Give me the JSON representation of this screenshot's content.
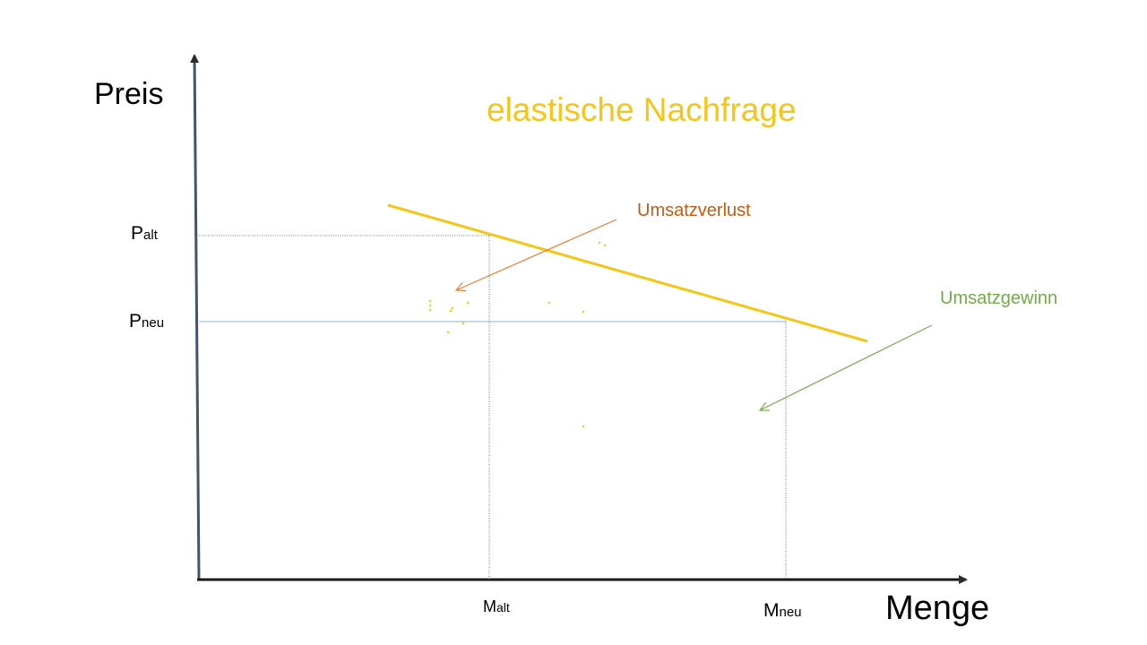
{
  "title": "elastische Nachfrage",
  "axes": {
    "y_label": "Preis",
    "x_label": "Menge"
  },
  "ticks": {
    "p_alt": {
      "main": "P",
      "sub": "alt"
    },
    "p_neu": {
      "main": "P",
      "sub": "neu"
    },
    "m_alt": {
      "main": "M",
      "sub": "alt"
    },
    "m_neu": {
      "main": "M",
      "sub": "neu"
    }
  },
  "annotations": {
    "loss": "Umsatzverlust",
    "gain": "Umsatzgewinn"
  },
  "colors": {
    "axis": "#44546a",
    "demand_curve": "#f5c518",
    "title": "#f5c518",
    "guide_line": "#5b7fb8",
    "loss": "#c55a11",
    "loss_arrow": "#ed7d31",
    "gain": "#70ad47"
  }
}
